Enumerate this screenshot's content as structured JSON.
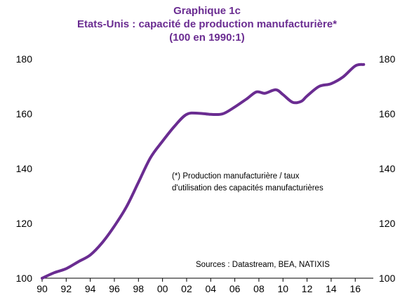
{
  "header": {
    "title": "Graphique 1c",
    "subtitle": "Etats-Unis : capacité de production manufacturière*",
    "subtitle2": "(100 en 1990:1)"
  },
  "colors": {
    "series": "#6a2c91",
    "text": "#000000",
    "axis": "#000000"
  },
  "notes": {
    "footnote_line1": "(*) Production manufacturière / taux",
    "footnote_line2": "d'utilisation des capacités manufacturières",
    "sources": "Sources : Datastream, BEA, NATIXIS"
  },
  "chart_data": {
    "type": "line",
    "title": "Graphique 1c",
    "grid": false,
    "legend": "none",
    "xlim": [
      1990,
      2017.5
    ],
    "ylim": [
      100,
      180
    ],
    "x_ticks": [
      1990,
      1992,
      1994,
      1996,
      1998,
      2000,
      2002,
      2004,
      2006,
      2008,
      2010,
      2012,
      2014,
      2016
    ],
    "x_tick_labels": [
      "90",
      "92",
      "94",
      "96",
      "98",
      "00",
      "02",
      "04",
      "06",
      "08",
      "10",
      "12",
      "14",
      "16"
    ],
    "y_ticks": [
      100,
      120,
      140,
      160,
      180
    ],
    "y_tick_labels": [
      "100",
      "120",
      "140",
      "160",
      "180"
    ],
    "series": [
      {
        "x": [
          1990,
          1991,
          1992,
          1993,
          1994,
          1995,
          1996,
          1997,
          1998,
          1999,
          2000,
          2001,
          2002,
          2003,
          2004,
          2005,
          2006,
          2007,
          2007.8,
          2008.5,
          2009.4,
          2010,
          2010.8,
          2011.5,
          2012,
          2013,
          2014,
          2015,
          2016,
          2016.7
        ],
        "y": [
          100,
          102,
          103.5,
          106,
          108.5,
          113,
          119,
          126,
          135,
          144,
          150,
          155.5,
          159.8,
          160.2,
          159.8,
          160,
          162.5,
          165.5,
          168,
          167.5,
          168.8,
          167,
          164.2,
          164.5,
          166.5,
          170,
          171,
          173.5,
          177.5,
          178
        ]
      }
    ]
  }
}
